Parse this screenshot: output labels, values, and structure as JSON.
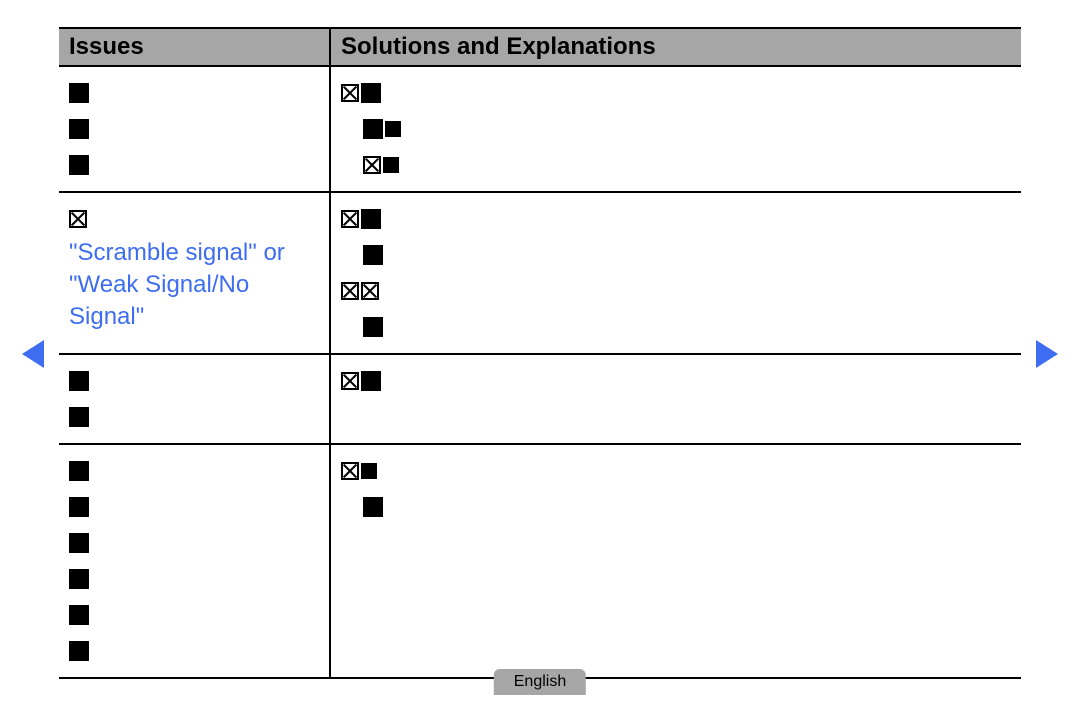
{
  "header": {
    "issues_label": "Issues",
    "solutions_label": "Solutions and Explanations"
  },
  "rows": [
    {
      "issue_blocks": 3,
      "sol_lines": [
        {
          "glyphs": [
            "xbox",
            "blk"
          ]
        },
        {
          "glyphs": [
            "blk",
            "blk-s"
          ],
          "indent": 1
        },
        {
          "glyphs": [
            "xbox",
            "blk-s"
          ],
          "indent": 1
        }
      ]
    },
    {
      "issue_leading_glyph": true,
      "issue_links": [
        "\"Scramble signal\" or",
        "\"Weak Signal/No",
        "Signal\""
      ],
      "sol_lines": [
        {
          "glyphs": [
            "xbox",
            "blk"
          ]
        },
        {
          "glyphs": [
            "blk"
          ],
          "indent": 1
        },
        {
          "glyphs": [
            "xbox",
            "xbox"
          ]
        },
        {
          "glyphs": [
            "blk"
          ],
          "indent": 1
        }
      ]
    },
    {
      "issue_blocks": 2,
      "sol_lines": [
        {
          "glyphs": [
            "xbox",
            "blk"
          ]
        }
      ]
    },
    {
      "issue_blocks": 6,
      "sol_lines": [
        {
          "glyphs": [
            "xbox",
            "blk-s"
          ]
        },
        {
          "glyphs": [
            "blk"
          ],
          "indent": 1
        }
      ]
    }
  ],
  "footer": {
    "language": "English"
  },
  "colors": {
    "header_bg": "#a6a6a6",
    "link": "#3e6df2",
    "border": "#000000",
    "background": "#ffffff"
  },
  "nav": {
    "prev": "prev-page",
    "next": "next-page"
  }
}
